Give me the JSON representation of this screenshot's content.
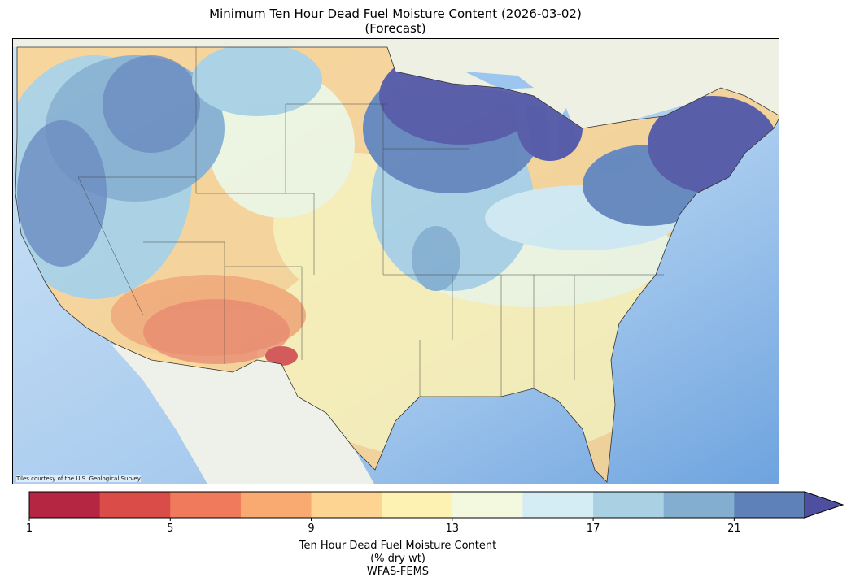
{
  "title": {
    "line1": "Minimum Ten Hour Dead Fuel Moisture Content (2026-03-02)",
    "line2": "(Forecast)"
  },
  "map": {
    "attribution": "Tiles courtesy of the U.S. Geological Survey"
  },
  "colorbar": {
    "label_line1": "Ten Hour Dead Fuel Moisture Content",
    "label_line2": "(% dry wt)",
    "label_line3": "WFAS-FEMS",
    "ticks": [
      "1",
      "5",
      "9",
      "13",
      "17",
      "21"
    ],
    "bounds": [
      1,
      3,
      5,
      7,
      9,
      11,
      13,
      15,
      17,
      19,
      21,
      23
    ],
    "extend": "max",
    "colors": [
      "#b42641",
      "#d94c47",
      "#f07a5c",
      "#f9aa70",
      "#fdd491",
      "#fef2b3",
      "#f3f9df",
      "#d4ecf3",
      "#a9d1e3",
      "#83aecf",
      "#5f81b9",
      "#4e4fa0"
    ]
  }
}
